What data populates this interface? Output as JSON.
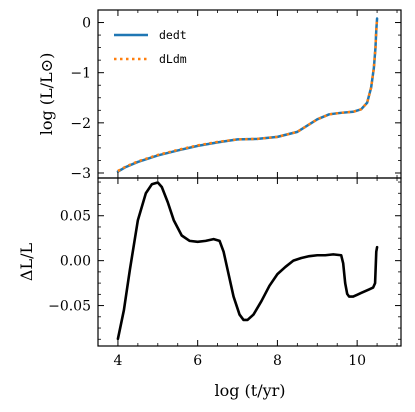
{
  "chart_data": [
    {
      "type": "line",
      "panel": "top",
      "ylabel": "log (L/L⊙)",
      "xlabel": "",
      "xlim": [
        3.5,
        11.1
      ],
      "ylim": [
        -3.1,
        0.25
      ],
      "yticks": [
        0,
        -1,
        -2,
        -3
      ],
      "ytick_labels": [
        "0",
        "−1",
        "−2",
        "−3"
      ],
      "xticks": [
        4,
        6,
        8,
        10
      ],
      "show_xtick_labels": false,
      "grid": false,
      "legend_position": "top-left",
      "series": [
        {
          "name": "dedt",
          "color": "#1f77b4",
          "style": "solid",
          "x": [
            4.0,
            4.2,
            4.5,
            5.0,
            5.5,
            6.0,
            6.5,
            7.0,
            7.5,
            8.0,
            8.5,
            9.0,
            9.3,
            9.6,
            9.9,
            10.1,
            10.25,
            10.35,
            10.42,
            10.46,
            10.48,
            10.5
          ],
          "y": [
            -2.97,
            -2.88,
            -2.78,
            -2.65,
            -2.55,
            -2.46,
            -2.39,
            -2.33,
            -2.32,
            -2.28,
            -2.18,
            -1.93,
            -1.83,
            -1.8,
            -1.78,
            -1.73,
            -1.6,
            -1.3,
            -0.9,
            -0.5,
            -0.15,
            0.08
          ]
        },
        {
          "name": "dLdm",
          "color": "#ff7f0e",
          "style": "dotted",
          "x": [
            4.0,
            4.2,
            4.5,
            5.0,
            5.5,
            6.0,
            6.5,
            7.0,
            7.5,
            8.0,
            8.5,
            9.0,
            9.3,
            9.6,
            9.9,
            10.1,
            10.25,
            10.35,
            10.42,
            10.46,
            10.48,
            10.5
          ],
          "y": [
            -2.96,
            -2.87,
            -2.77,
            -2.64,
            -2.54,
            -2.45,
            -2.38,
            -2.33,
            -2.32,
            -2.28,
            -2.18,
            -1.93,
            -1.83,
            -1.8,
            -1.78,
            -1.73,
            -1.6,
            -1.3,
            -0.9,
            -0.5,
            -0.15,
            0.08
          ]
        }
      ]
    },
    {
      "type": "line",
      "panel": "bottom",
      "xlabel": "log (t/yr)",
      "ylabel": "ΔL/L",
      "xlim": [
        3.5,
        11.1
      ],
      "ylim": [
        -0.095,
        0.092
      ],
      "yticks": [
        0.05,
        0.0,
        -0.05
      ],
      "ytick_labels": [
        "0.05",
        "0.00",
        "−0.05"
      ],
      "xticks": [
        4,
        6,
        8,
        10
      ],
      "xtick_labels": [
        "4",
        "6",
        "8",
        "10"
      ],
      "grid": false,
      "series": [
        {
          "name": "",
          "color": "#000000",
          "style": "solid",
          "x": [
            4.0,
            4.15,
            4.3,
            4.5,
            4.7,
            4.85,
            5.0,
            5.1,
            5.25,
            5.4,
            5.6,
            5.8,
            6.0,
            6.2,
            6.4,
            6.55,
            6.65,
            6.75,
            6.9,
            7.05,
            7.15,
            7.25,
            7.4,
            7.6,
            7.8,
            8.0,
            8.2,
            8.4,
            8.6,
            8.8,
            9.0,
            9.2,
            9.4,
            9.6,
            9.65,
            9.7,
            9.75,
            9.8,
            9.9,
            10.0,
            10.1,
            10.2,
            10.3,
            10.4,
            10.45,
            10.48,
            10.5
          ],
          "y": [
            -0.087,
            -0.055,
            -0.01,
            0.045,
            0.075,
            0.085,
            0.087,
            0.082,
            0.065,
            0.045,
            0.028,
            0.022,
            0.021,
            0.022,
            0.024,
            0.022,
            0.01,
            -0.01,
            -0.04,
            -0.06,
            -0.066,
            -0.066,
            -0.06,
            -0.045,
            -0.028,
            -0.015,
            -0.007,
            0.0,
            0.003,
            0.005,
            0.006,
            0.006,
            0.007,
            0.006,
            -0.003,
            -0.025,
            -0.037,
            -0.04,
            -0.04,
            -0.038,
            -0.036,
            -0.034,
            -0.032,
            -0.03,
            -0.025,
            0.01,
            0.015
          ]
        }
      ]
    }
  ]
}
